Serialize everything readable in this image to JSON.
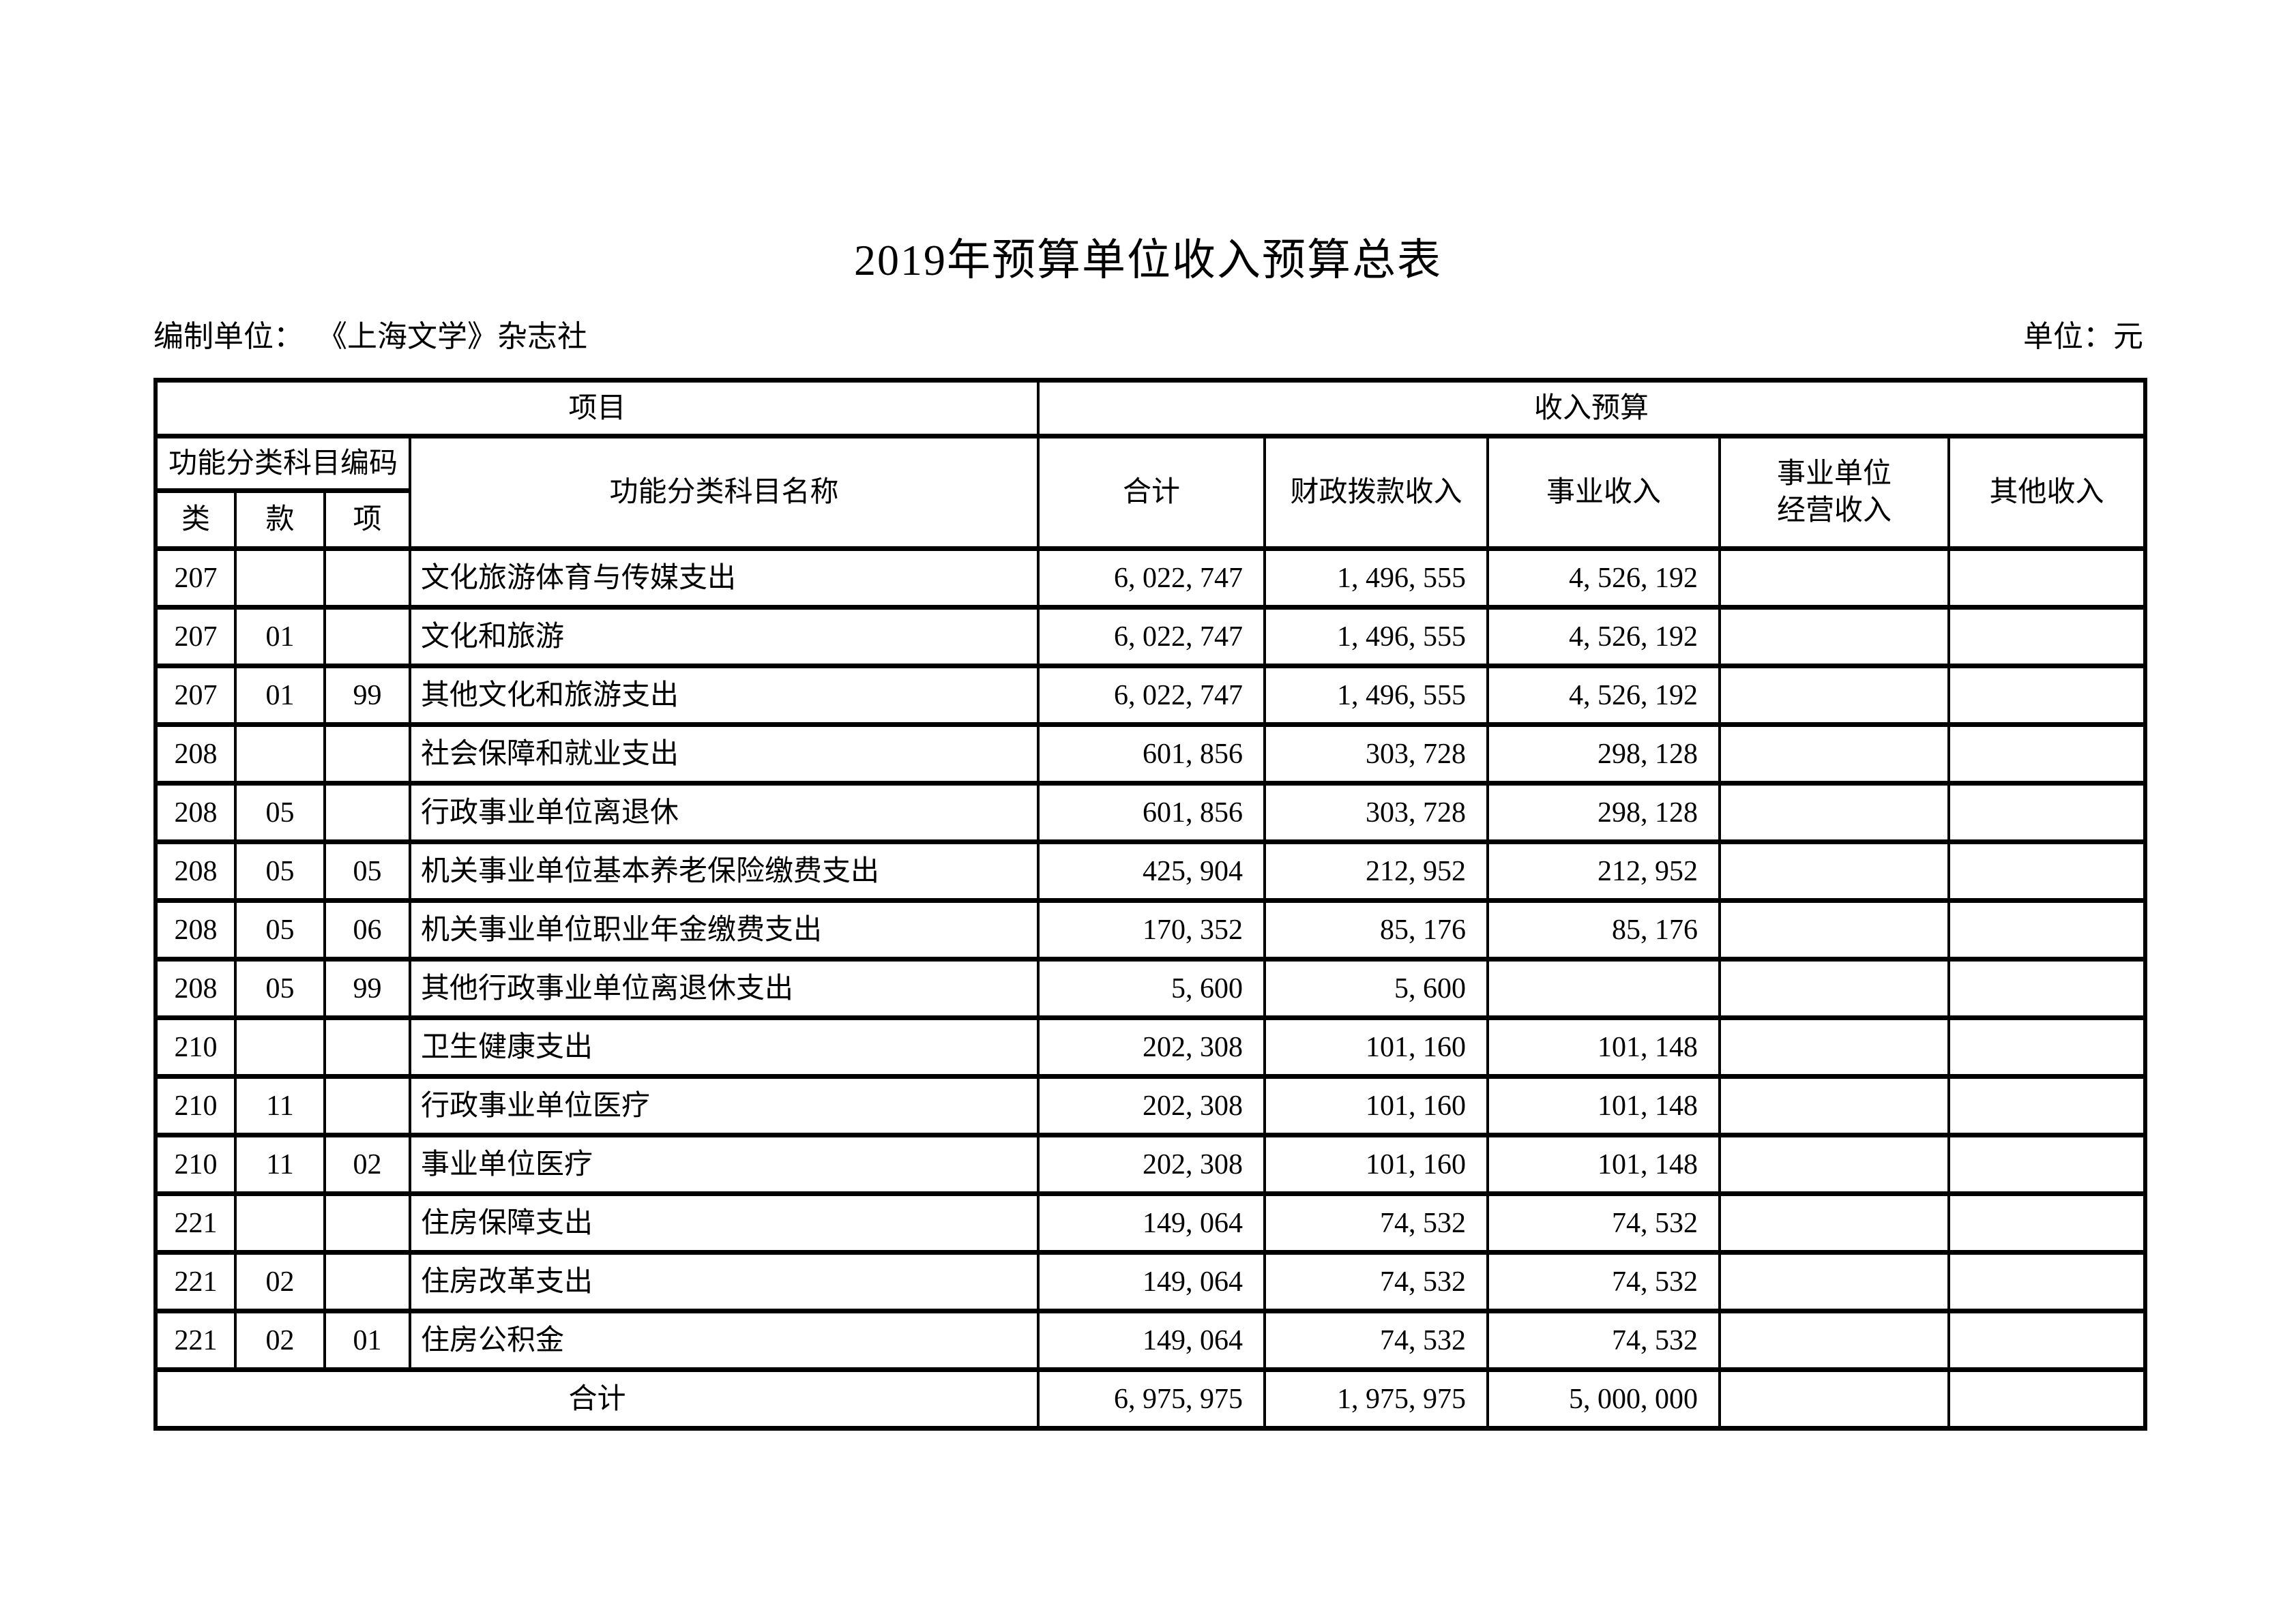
{
  "page": {
    "title": "2019年预算单位收入预算总表",
    "prepared_by_label": "编制单位：",
    "prepared_by_value": "《上海文学》杂志社",
    "unit_note": "单位：元"
  },
  "table": {
    "header": {
      "project_group": "项目",
      "income_group": "收入预算",
      "code_group": "功能分类科目编码",
      "code_columns": [
        "类",
        "款",
        "项"
      ],
      "name_column": "功能分类科目名称",
      "income_columns": [
        "合计",
        "财政拨款收入",
        "事业收入",
        "事业单位\n经营收入",
        "其他收入"
      ]
    },
    "rows": [
      {
        "lei": "207",
        "kuan": "",
        "xiang": "",
        "name": "文化旅游体育与传媒支出",
        "total": "6, 022, 747",
        "fiscal": "1, 496, 555",
        "business": "4, 526, 192",
        "operating": "",
        "other": ""
      },
      {
        "lei": "207",
        "kuan": "01",
        "xiang": "",
        "name": "文化和旅游",
        "total": "6, 022, 747",
        "fiscal": "1, 496, 555",
        "business": "4, 526, 192",
        "operating": "",
        "other": ""
      },
      {
        "lei": "207",
        "kuan": "01",
        "xiang": "99",
        "name": "其他文化和旅游支出",
        "total": "6, 022, 747",
        "fiscal": "1, 496, 555",
        "business": "4, 526, 192",
        "operating": "",
        "other": ""
      },
      {
        "lei": "208",
        "kuan": "",
        "xiang": "",
        "name": "社会保障和就业支出",
        "total": "601, 856",
        "fiscal": "303, 728",
        "business": "298, 128",
        "operating": "",
        "other": ""
      },
      {
        "lei": "208",
        "kuan": "05",
        "xiang": "",
        "name": "行政事业单位离退休",
        "total": "601, 856",
        "fiscal": "303, 728",
        "business": "298, 128",
        "operating": "",
        "other": ""
      },
      {
        "lei": "208",
        "kuan": "05",
        "xiang": "05",
        "name": "机关事业单位基本养老保险缴费支出",
        "total": "425, 904",
        "fiscal": "212, 952",
        "business": "212, 952",
        "operating": "",
        "other": ""
      },
      {
        "lei": "208",
        "kuan": "05",
        "xiang": "06",
        "name": "机关事业单位职业年金缴费支出",
        "total": "170, 352",
        "fiscal": "85, 176",
        "business": "85, 176",
        "operating": "",
        "other": ""
      },
      {
        "lei": "208",
        "kuan": "05",
        "xiang": "99",
        "name": "其他行政事业单位离退休支出",
        "total": "5, 600",
        "fiscal": "5, 600",
        "business": "",
        "operating": "",
        "other": ""
      },
      {
        "lei": "210",
        "kuan": "",
        "xiang": "",
        "name": "卫生健康支出",
        "total": "202, 308",
        "fiscal": "101, 160",
        "business": "101, 148",
        "operating": "",
        "other": ""
      },
      {
        "lei": "210",
        "kuan": "11",
        "xiang": "",
        "name": "行政事业单位医疗",
        "total": "202, 308",
        "fiscal": "101, 160",
        "business": "101, 148",
        "operating": "",
        "other": ""
      },
      {
        "lei": "210",
        "kuan": "11",
        "xiang": "02",
        "name": "事业单位医疗",
        "total": "202, 308",
        "fiscal": "101, 160",
        "business": "101, 148",
        "operating": "",
        "other": ""
      },
      {
        "lei": "221",
        "kuan": "",
        "xiang": "",
        "name": "住房保障支出",
        "total": "149, 064",
        "fiscal": "74, 532",
        "business": "74, 532",
        "operating": "",
        "other": ""
      },
      {
        "lei": "221",
        "kuan": "02",
        "xiang": "",
        "name": "住房改革支出",
        "total": "149, 064",
        "fiscal": "74, 532",
        "business": "74, 532",
        "operating": "",
        "other": ""
      },
      {
        "lei": "221",
        "kuan": "02",
        "xiang": "01",
        "name": "住房公积金",
        "total": "149, 064",
        "fiscal": "74, 532",
        "business": "74, 532",
        "operating": "",
        "other": ""
      }
    ],
    "total_row": {
      "label": "合计",
      "total": "6, 975, 975",
      "fiscal": "1, 975, 975",
      "business": "5, 000, 000",
      "operating": "",
      "other": ""
    }
  }
}
